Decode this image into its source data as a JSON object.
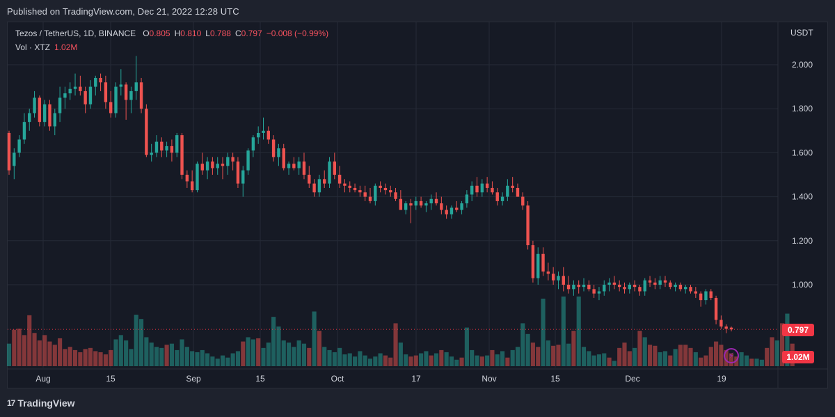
{
  "header": {
    "published": "Published on TradingView.com, Dec 21, 2022 12:28 UTC"
  },
  "legend": {
    "symbol": "Tezos / TetherUS, 1D, BINANCE",
    "o_label": "O",
    "o_value": "0.805",
    "h_label": "H",
    "h_value": "0.810",
    "l_label": "L",
    "l_value": "0.788",
    "c_label": "C",
    "c_value": "0.797",
    "change": "−0.008 (−0.99%)",
    "vol_label": "Vol · XTZ",
    "vol_value": "1.02M"
  },
  "price_axis": {
    "unit": "USDT",
    "ticks": [
      "2.000",
      "1.800",
      "1.600",
      "1.400",
      "1.200",
      "1.000"
    ],
    "last_price": "0.797",
    "last_volume": "1.02M"
  },
  "time_axis": {
    "labels": [
      "Aug",
      "15",
      "Sep",
      "15",
      "Oct",
      "17",
      "Nov",
      "15",
      "Dec",
      "19"
    ]
  },
  "footer": {
    "brand": "TradingView",
    "logo_mark": "17"
  },
  "colors": {
    "up": "#26a69a",
    "down": "#ef5350",
    "bg": "#161a25",
    "grid": "#252a37",
    "tag": "#f23645"
  },
  "chart_data": {
    "type": "candlestick",
    "title": "Tezos / TetherUS, 1D, BINANCE",
    "ylabel": "USDT",
    "ylim": [
      0.72,
      2.15
    ],
    "grid": true,
    "candles": [
      [
        1.69,
        1.7,
        1.5,
        1.52
      ],
      [
        1.54,
        1.62,
        1.48,
        1.6
      ],
      [
        1.6,
        1.68,
        1.58,
        1.66
      ],
      [
        1.66,
        1.78,
        1.64,
        1.74
      ],
      [
        1.74,
        1.8,
        1.7,
        1.78
      ],
      [
        1.78,
        1.88,
        1.76,
        1.85
      ],
      [
        1.85,
        1.86,
        1.72,
        1.74
      ],
      [
        1.74,
        1.84,
        1.72,
        1.82
      ],
      [
        1.82,
        1.84,
        1.7,
        1.72
      ],
      [
        1.72,
        1.8,
        1.68,
        1.78
      ],
      [
        1.78,
        1.9,
        1.74,
        1.85
      ],
      [
        1.85,
        1.9,
        1.8,
        1.87
      ],
      [
        1.87,
        1.92,
        1.84,
        1.89
      ],
      [
        1.89,
        1.96,
        1.86,
        1.9
      ],
      [
        1.9,
        1.95,
        1.86,
        1.88
      ],
      [
        1.88,
        1.9,
        1.78,
        1.82
      ],
      [
        1.82,
        1.93,
        1.8,
        1.9
      ],
      [
        1.9,
        1.95,
        1.86,
        1.94
      ],
      [
        1.94,
        1.96,
        1.88,
        1.92
      ],
      [
        1.92,
        1.95,
        1.8,
        1.83
      ],
      [
        1.83,
        1.88,
        1.76,
        1.78
      ],
      [
        1.78,
        1.92,
        1.76,
        1.9
      ],
      [
        1.9,
        1.98,
        1.86,
        1.91
      ],
      [
        1.91,
        1.92,
        1.75,
        1.84
      ],
      [
        1.84,
        1.9,
        1.78,
        1.88
      ],
      [
        1.88,
        2.04,
        1.84,
        1.92
      ],
      [
        1.92,
        1.94,
        1.78,
        1.8
      ],
      [
        1.8,
        1.82,
        1.58,
        1.59
      ],
      [
        1.59,
        1.64,
        1.56,
        1.6
      ],
      [
        1.6,
        1.68,
        1.58,
        1.65
      ],
      [
        1.65,
        1.67,
        1.58,
        1.61
      ],
      [
        1.61,
        1.65,
        1.58,
        1.63
      ],
      [
        1.63,
        1.66,
        1.56,
        1.6
      ],
      [
        1.6,
        1.69,
        1.58,
        1.68
      ],
      [
        1.68,
        1.69,
        1.48,
        1.5
      ],
      [
        1.5,
        1.52,
        1.44,
        1.47
      ],
      [
        1.47,
        1.52,
        1.42,
        1.43
      ],
      [
        1.43,
        1.56,
        1.42,
        1.55
      ],
      [
        1.55,
        1.6,
        1.5,
        1.52
      ],
      [
        1.52,
        1.58,
        1.48,
        1.56
      ],
      [
        1.56,
        1.58,
        1.5,
        1.53
      ],
      [
        1.53,
        1.58,
        1.5,
        1.55
      ],
      [
        1.55,
        1.58,
        1.48,
        1.54
      ],
      [
        1.54,
        1.6,
        1.5,
        1.58
      ],
      [
        1.58,
        1.6,
        1.52,
        1.56
      ],
      [
        1.56,
        1.58,
        1.44,
        1.46
      ],
      [
        1.46,
        1.54,
        1.4,
        1.52
      ],
      [
        1.52,
        1.62,
        1.5,
        1.61
      ],
      [
        1.61,
        1.68,
        1.58,
        1.67
      ],
      [
        1.67,
        1.72,
        1.64,
        1.69
      ],
      [
        1.69,
        1.76,
        1.66,
        1.7
      ],
      [
        1.7,
        1.72,
        1.64,
        1.66
      ],
      [
        1.66,
        1.68,
        1.56,
        1.58
      ],
      [
        1.58,
        1.64,
        1.54,
        1.62
      ],
      [
        1.62,
        1.64,
        1.52,
        1.53
      ],
      [
        1.53,
        1.56,
        1.5,
        1.55
      ],
      [
        1.55,
        1.58,
        1.52,
        1.53
      ],
      [
        1.53,
        1.58,
        1.5,
        1.56
      ],
      [
        1.56,
        1.6,
        1.48,
        1.5
      ],
      [
        1.5,
        1.54,
        1.44,
        1.46
      ],
      [
        1.46,
        1.48,
        1.4,
        1.42
      ],
      [
        1.42,
        1.5,
        1.4,
        1.48
      ],
      [
        1.48,
        1.52,
        1.44,
        1.46
      ],
      [
        1.46,
        1.58,
        1.44,
        1.56
      ],
      [
        1.56,
        1.6,
        1.48,
        1.5
      ],
      [
        1.5,
        1.54,
        1.44,
        1.46
      ],
      [
        1.46,
        1.48,
        1.42,
        1.45
      ],
      [
        1.45,
        1.47,
        1.42,
        1.44
      ],
      [
        1.44,
        1.46,
        1.42,
        1.43
      ],
      [
        1.43,
        1.45,
        1.4,
        1.42
      ],
      [
        1.42,
        1.45,
        1.38,
        1.4
      ],
      [
        1.4,
        1.44,
        1.37,
        1.38
      ],
      [
        1.38,
        1.46,
        1.36,
        1.45
      ],
      [
        1.45,
        1.47,
        1.42,
        1.44
      ],
      [
        1.44,
        1.46,
        1.41,
        1.43
      ],
      [
        1.43,
        1.45,
        1.4,
        1.42
      ],
      [
        1.42,
        1.44,
        1.38,
        1.39
      ],
      [
        1.39,
        1.43,
        1.35,
        1.34
      ],
      [
        1.34,
        1.38,
        1.32,
        1.37
      ],
      [
        1.37,
        1.39,
        1.28,
        1.36
      ],
      [
        1.36,
        1.4,
        1.34,
        1.38
      ],
      [
        1.38,
        1.4,
        1.35,
        1.36
      ],
      [
        1.36,
        1.38,
        1.33,
        1.37
      ],
      [
        1.37,
        1.41,
        1.34,
        1.39
      ],
      [
        1.39,
        1.42,
        1.36,
        1.37
      ],
      [
        1.37,
        1.4,
        1.32,
        1.34
      ],
      [
        1.34,
        1.36,
        1.3,
        1.32
      ],
      [
        1.32,
        1.36,
        1.3,
        1.35
      ],
      [
        1.35,
        1.38,
        1.33,
        1.34
      ],
      [
        1.34,
        1.38,
        1.32,
        1.37
      ],
      [
        1.37,
        1.43,
        1.35,
        1.41
      ],
      [
        1.41,
        1.47,
        1.38,
        1.45
      ],
      [
        1.45,
        1.49,
        1.4,
        1.42
      ],
      [
        1.42,
        1.48,
        1.4,
        1.46
      ],
      [
        1.46,
        1.49,
        1.42,
        1.44
      ],
      [
        1.44,
        1.47,
        1.41,
        1.42
      ],
      [
        1.42,
        1.44,
        1.36,
        1.38
      ],
      [
        1.38,
        1.42,
        1.36,
        1.4
      ],
      [
        1.4,
        1.48,
        1.38,
        1.45
      ],
      [
        1.45,
        1.49,
        1.42,
        1.44
      ],
      [
        1.44,
        1.46,
        1.4,
        1.4
      ],
      [
        1.4,
        1.42,
        1.34,
        1.36
      ],
      [
        1.36,
        1.38,
        1.16,
        1.18
      ],
      [
        1.18,
        1.2,
        1.01,
        1.03
      ],
      [
        1.03,
        1.17,
        1.0,
        1.14
      ],
      [
        1.14,
        1.17,
        1.04,
        1.06
      ],
      [
        1.06,
        1.1,
        1.02,
        1.05
      ],
      [
        1.05,
        1.08,
        1.0,
        1.02
      ],
      [
        1.02,
        1.06,
        0.98,
        1.04
      ],
      [
        1.04,
        1.08,
        0.97,
        1.0
      ],
      [
        1.0,
        1.04,
        0.96,
        0.98
      ],
      [
        0.98,
        1.02,
        0.95,
        1.0
      ],
      [
        1.0,
        1.02,
        0.96,
        0.99
      ],
      [
        0.99,
        1.03,
        0.97,
        1.0
      ],
      [
        1.0,
        1.02,
        0.97,
        0.98
      ],
      [
        0.98,
        1.0,
        0.94,
        0.96
      ],
      [
        0.96,
        0.99,
        0.93,
        0.97
      ],
      [
        0.97,
        1.02,
        0.95,
        1.0
      ],
      [
        1.0,
        1.03,
        0.97,
        1.01
      ],
      [
        1.01,
        1.04,
        0.98,
        1.0
      ],
      [
        1.0,
        1.02,
        0.97,
        0.99
      ],
      [
        0.99,
        1.01,
        0.96,
        0.98
      ],
      [
        0.98,
        1.01,
        0.96,
        1.0
      ],
      [
        1.0,
        1.02,
        0.97,
        0.99
      ],
      [
        0.99,
        1.0,
        0.95,
        0.97
      ],
      [
        0.97,
        1.03,
        0.95,
        1.02
      ],
      [
        1.02,
        1.04,
        0.99,
        1.01
      ],
      [
        1.01,
        1.03,
        0.98,
        1.0
      ],
      [
        1.0,
        1.04,
        0.98,
        1.02
      ],
      [
        1.02,
        1.04,
        0.99,
        1.01
      ],
      [
        1.01,
        1.02,
        0.98,
        0.99
      ],
      [
        0.99,
        1.01,
        0.97,
        1.0
      ],
      [
        1.0,
        1.01,
        0.97,
        0.98
      ],
      [
        0.98,
        1.0,
        0.96,
        0.99
      ],
      [
        0.99,
        1.0,
        0.96,
        0.97
      ],
      [
        0.97,
        0.99,
        0.94,
        0.96
      ],
      [
        0.96,
        0.97,
        0.9,
        0.93
      ],
      [
        0.93,
        0.98,
        0.91,
        0.97
      ],
      [
        0.97,
        0.98,
        0.93,
        0.94
      ],
      [
        0.94,
        0.95,
        0.82,
        0.84
      ],
      [
        0.84,
        0.86,
        0.8,
        0.81
      ],
      [
        0.81,
        0.82,
        0.78,
        0.8
      ],
      [
        0.805,
        0.81,
        0.788,
        0.797
      ]
    ],
    "volumes": [
      [
        42,
        0
      ],
      [
        68,
        1
      ],
      [
        70,
        1
      ],
      [
        58,
        1
      ],
      [
        95,
        1
      ],
      [
        62,
        1
      ],
      [
        48,
        1
      ],
      [
        58,
        1
      ],
      [
        46,
        1
      ],
      [
        40,
        1
      ],
      [
        52,
        1
      ],
      [
        32,
        1
      ],
      [
        36,
        1
      ],
      [
        30,
        1
      ],
      [
        26,
        1
      ],
      [
        32,
        1
      ],
      [
        34,
        1
      ],
      [
        28,
        1
      ],
      [
        26,
        1
      ],
      [
        22,
        1
      ],
      [
        30,
        1
      ],
      [
        50,
        0
      ],
      [
        58,
        0
      ],
      [
        48,
        0
      ],
      [
        32,
        0
      ],
      [
        96,
        0
      ],
      [
        88,
        0
      ],
      [
        54,
        0
      ],
      [
        44,
        0
      ],
      [
        36,
        0
      ],
      [
        34,
        0
      ],
      [
        40,
        1
      ],
      [
        42,
        0
      ],
      [
        30,
        0
      ],
      [
        50,
        0
      ],
      [
        36,
        0
      ],
      [
        28,
        0
      ],
      [
        26,
        0
      ],
      [
        30,
        0
      ],
      [
        24,
        0
      ],
      [
        18,
        0
      ],
      [
        14,
        0
      ],
      [
        20,
        0
      ],
      [
        16,
        0
      ],
      [
        24,
        0
      ],
      [
        28,
        0
      ],
      [
        46,
        1
      ],
      [
        54,
        0
      ],
      [
        50,
        0
      ],
      [
        52,
        1
      ],
      [
        34,
        0
      ],
      [
        44,
        0
      ],
      [
        92,
        0
      ],
      [
        74,
        0
      ],
      [
        48,
        0
      ],
      [
        44,
        0
      ],
      [
        36,
        0
      ],
      [
        48,
        0
      ],
      [
        42,
        0
      ],
      [
        34,
        1
      ],
      [
        102,
        0
      ],
      [
        66,
        1
      ],
      [
        36,
        0
      ],
      [
        30,
        0
      ],
      [
        26,
        0
      ],
      [
        34,
        0
      ],
      [
        22,
        0
      ],
      [
        24,
        0
      ],
      [
        18,
        0
      ],
      [
        28,
        0
      ],
      [
        20,
        0
      ],
      [
        14,
        0
      ],
      [
        18,
        0
      ],
      [
        24,
        0
      ],
      [
        20,
        1
      ],
      [
        16,
        1
      ],
      [
        80,
        1
      ],
      [
        44,
        0
      ],
      [
        22,
        0
      ],
      [
        18,
        1
      ],
      [
        20,
        1
      ],
      [
        24,
        0
      ],
      [
        28,
        0
      ],
      [
        20,
        1
      ],
      [
        24,
        0
      ],
      [
        30,
        1
      ],
      [
        26,
        0
      ],
      [
        18,
        0
      ],
      [
        12,
        0
      ],
      [
        16,
        1
      ],
      [
        72,
        0
      ],
      [
        30,
        0
      ],
      [
        20,
        0
      ],
      [
        18,
        1
      ],
      [
        20,
        0
      ],
      [
        30,
        1
      ],
      [
        22,
        0
      ],
      [
        28,
        0
      ],
      [
        16,
        1
      ],
      [
        30,
        0
      ],
      [
        36,
        0
      ],
      [
        80,
        0
      ],
      [
        60,
        0
      ],
      [
        44,
        1
      ],
      [
        36,
        1
      ],
      [
        126,
        0
      ],
      [
        48,
        0
      ],
      [
        38,
        1
      ],
      [
        40,
        1
      ],
      [
        130,
        0
      ],
      [
        42,
        0
      ],
      [
        66,
        1
      ],
      [
        130,
        0
      ],
      [
        36,
        0
      ],
      [
        28,
        0
      ],
      [
        20,
        0
      ],
      [
        22,
        0
      ],
      [
        24,
        0
      ],
      [
        16,
        1
      ],
      [
        10,
        0
      ],
      [
        34,
        1
      ],
      [
        44,
        1
      ],
      [
        28,
        1
      ],
      [
        34,
        0
      ],
      [
        66,
        1
      ],
      [
        54,
        0
      ],
      [
        40,
        1
      ],
      [
        38,
        1
      ],
      [
        26,
        0
      ],
      [
        28,
        0
      ],
      [
        20,
        1
      ],
      [
        32,
        0
      ],
      [
        40,
        1
      ],
      [
        40,
        1
      ],
      [
        34,
        1
      ],
      [
        26,
        0
      ],
      [
        16,
        1
      ],
      [
        20,
        1
      ],
      [
        36,
        1
      ],
      [
        46,
        1
      ],
      [
        40,
        1
      ],
      [
        30,
        1
      ],
      [
        24,
        1
      ],
      [
        18,
        1
      ],
      [
        26,
        0
      ],
      [
        20,
        0
      ],
      [
        14,
        1
      ],
      [
        14,
        0
      ],
      [
        12,
        0
      ],
      [
        34,
        1
      ],
      [
        54,
        1
      ],
      [
        48,
        0
      ],
      [
        80,
        1
      ],
      [
        98,
        0
      ],
      [
        42,
        1
      ]
    ]
  }
}
